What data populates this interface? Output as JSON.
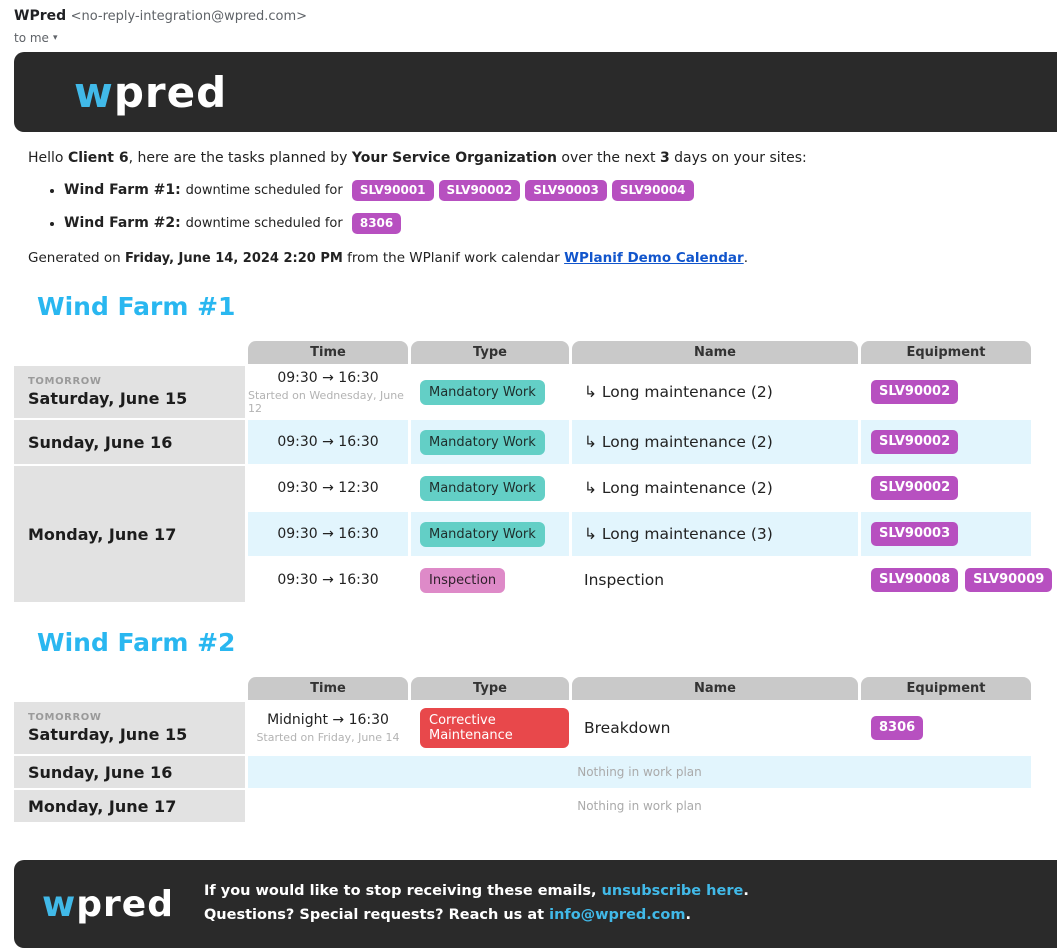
{
  "colors": {
    "dark": "#2a2a2a",
    "brand-accent": "#41b9e8",
    "heading": "#29b7f0",
    "equip": "#b750c0",
    "row-shade": "#e2f5fd",
    "label-bg": "#e2e2e2",
    "header-bg": "#c9c9c9",
    "link-blue": "#1155cc"
  },
  "email_header": {
    "sender_name": "WPred",
    "sender_address": "<no-reply-integration@wpred.com>",
    "recipient": "to me",
    "caret": "▾"
  },
  "brand": {
    "logo_prefix": "w",
    "logo_suffix": "pred"
  },
  "intro": {
    "prefix": "Hello ",
    "client": "Client 6",
    "mid1": ", here are the tasks planned by ",
    "org": "Your Service Organization",
    "mid2": " over the next ",
    "days": "3",
    "suffix": " days on your sites:"
  },
  "summary": [
    {
      "site": "Wind Farm #1",
      "colon": ": ",
      "label": "downtime scheduled for",
      "equipment": [
        "SLV90001",
        "SLV90002",
        "SLV90003",
        "SLV90004"
      ]
    },
    {
      "site": "Wind Farm #2",
      "colon": ": ",
      "label": "downtime scheduled for",
      "equipment": [
        "8306"
      ]
    }
  ],
  "generated": {
    "prefix": "Generated on ",
    "datetime": "Friday, June 14, 2024 2:20 PM",
    "mid": " from the WPlanif work calendar ",
    "link": "WPlanif Demo Calendar",
    "suffix": "."
  },
  "table_columns": [
    "Time",
    "Type",
    "Name",
    "Equipment"
  ],
  "type_styles": {
    "Mandatory Work": {
      "bg": "#63cfc6",
      "fg": "#1f2e2c"
    },
    "Inspection": {
      "bg": "#de8ac8",
      "fg": "#2e1f2a"
    },
    "Corrective Maintenance": {
      "bg": "#e8484b",
      "fg": "#ffffff"
    }
  },
  "sections": [
    {
      "title": "Wind Farm #1",
      "days": [
        {
          "tag": "TOMORROW",
          "date": "Saturday, June 15",
          "tasks": [
            {
              "time": "09:30 → 16:30",
              "time_note": "Started on Wednesday, June 12",
              "type": "Mandatory Work",
              "name": "↳ Long maintenance (2)",
              "equipment": [
                "SLV90002"
              ],
              "shaded": false
            }
          ]
        },
        {
          "date": "Sunday, June 16",
          "tasks": [
            {
              "time": "09:30 → 16:30",
              "type": "Mandatory Work",
              "name": "↳ Long maintenance (2)",
              "equipment": [
                "SLV90002"
              ],
              "shaded": true
            }
          ]
        },
        {
          "date": "Monday, June 17",
          "tasks": [
            {
              "time": "09:30 → 12:30",
              "type": "Mandatory Work",
              "name": "↳ Long maintenance (2)",
              "equipment": [
                "SLV90002"
              ],
              "shaded": false
            },
            {
              "time": "09:30 → 16:30",
              "type": "Mandatory Work",
              "name": "↳ Long maintenance (3)",
              "equipment": [
                "SLV90003"
              ],
              "shaded": true
            },
            {
              "time": "09:30 → 16:30",
              "type": "Inspection",
              "name": "Inspection",
              "equipment": [
                "SLV90008",
                "SLV90009"
              ],
              "shaded": false
            }
          ]
        }
      ]
    },
    {
      "title": "Wind Farm #2",
      "days": [
        {
          "tag": "TOMORROW",
          "date": "Saturday, June 15",
          "tasks": [
            {
              "time": "Midnight → 16:30",
              "time_note": "Started on Friday, June 14",
              "type": "Corrective Maintenance",
              "name": "Breakdown",
              "equipment": [
                "8306"
              ],
              "shaded": false
            }
          ]
        },
        {
          "date": "Sunday, June 16",
          "empty_text": "Nothing in work plan",
          "shaded": true
        },
        {
          "date": "Monday, June 17",
          "empty_text": "Nothing in work plan",
          "shaded": false
        }
      ]
    }
  ],
  "footer": {
    "line1_prefix": "If you would like to stop receiving these emails, ",
    "line1_link": "unsubscribe here",
    "line1_suffix": ".",
    "line2_prefix": "Questions? Special requests? Reach us at ",
    "line2_link": "info@wpred.com",
    "line2_suffix": "."
  }
}
